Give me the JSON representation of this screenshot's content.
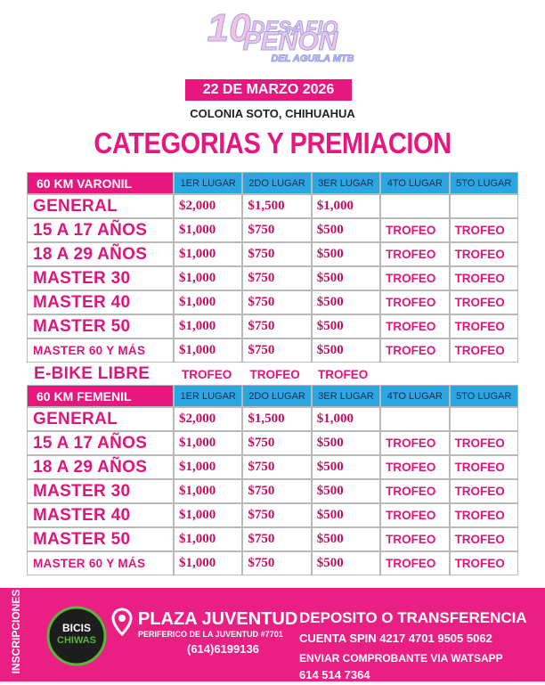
{
  "header": {
    "edition": "10",
    "event_line1": "DESAFIO",
    "event_line2": "PEÑON",
    "event_line3": "DEL AGUILA MTB",
    "date": "22 DE MARZO 2026",
    "location": "COLONIA SOTO, CHIHUAHUA",
    "title": "CATEGORIAS Y PREMIACION"
  },
  "tables": [
    {
      "heading": "60 KM VARONIL",
      "columns": [
        "1ER LUGAR",
        "2DO LUGAR",
        "3ER LUGAR",
        "4TO LUGAR",
        "5TO LUGAR"
      ],
      "rows": [
        [
          "GENERAL",
          "$2,000",
          "$1,500",
          "$1,000"
        ],
        [
          "15 A 17 AÑOS",
          "$1,000",
          "$750",
          "$500",
          "TROFEO",
          "TROFEO"
        ],
        [
          "18 A 29 AÑOS",
          "$1,000",
          "$750",
          "$500",
          "TROFEO",
          "TROFEO"
        ],
        [
          "MASTER 30",
          "$1,000",
          "$750",
          "$500",
          "TROFEO",
          "TROFEO"
        ],
        [
          "MASTER 40",
          "$1,000",
          "$750",
          "$500",
          "TROFEO",
          "TROFEO"
        ],
        [
          "MASTER 50",
          "$1,000",
          "$750",
          "$500",
          "TROFEO",
          "TROFEO"
        ],
        [
          "MASTER 60 Y MÁS",
          "$1,000",
          "$750",
          "$500",
          "TROFEO",
          "TROFEO"
        ]
      ]
    },
    {
      "heading": "60 KM FEMENIL",
      "columns": [
        "1ER LUGAR",
        "2DO LUGAR",
        "3ER LUGAR",
        "4TO LUGAR",
        "5TO LUGAR"
      ],
      "rows": [
        [
          "GENERAL",
          "$2,000",
          "$1,500",
          "$1,000"
        ],
        [
          "15 A 17 AÑOS",
          "$1,000",
          "$750",
          "$500",
          "TROFEO",
          "TROFEO"
        ],
        [
          "18 A 29 AÑOS",
          "$1,000",
          "$750",
          "$500",
          "TROFEO",
          "TROFEO"
        ],
        [
          "MASTER 30",
          "$1,000",
          "$750",
          "$500",
          "TROFEO",
          "TROFEO"
        ],
        [
          "MASTER 40",
          "$1,000",
          "$750",
          "$500",
          "TROFEO",
          "TROFEO"
        ],
        [
          "MASTER 50",
          "$1,000",
          "$750",
          "$500",
          "TROFEO",
          "TROFEO"
        ],
        [
          "MASTER 60 Y MÁS",
          "$1,000",
          "$750",
          "$500",
          "TROFEO",
          "TROFEO"
        ]
      ]
    }
  ],
  "ebike": {
    "label": "E-BIKE LIBRE",
    "prizes": [
      "TROFEO",
      "TROFEO",
      "TROFEO"
    ]
  },
  "footer": {
    "side_label": "INSCRIPCIONES",
    "shop_name_1": "BICIS",
    "shop_name_2": "CHIWAS",
    "place": "PLAZA JUVENTUD",
    "address": "PERIFERICO DE LA JUVENTUD #7701",
    "phone": "(614)6199136",
    "payment_title": "DEPOSITO  O TRANSFERENCIA",
    "account": "CUENTA SPIN 4217 4701 9505 5062",
    "instructions": "ENVIAR COMPROBANTE VIA WATSAPP",
    "whatsapp": "614 514 7364"
  }
}
